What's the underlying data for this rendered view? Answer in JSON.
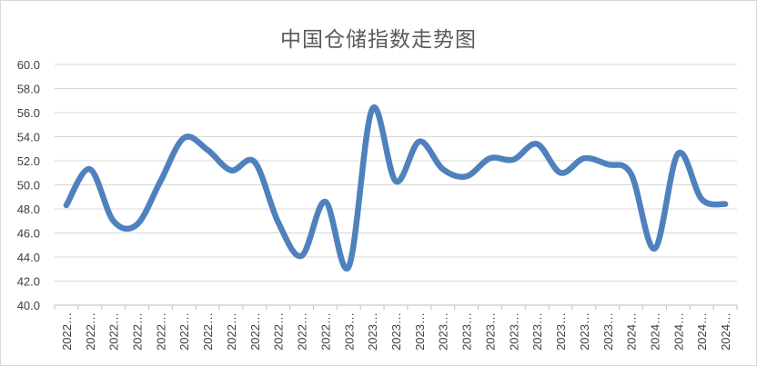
{
  "chart_data": {
    "type": "line",
    "title": "中国仓储指数走势图",
    "xlabel": "",
    "ylabel": "",
    "ylim": [
      40,
      60
    ],
    "ystep": 2,
    "grid": true,
    "legend": "none",
    "line_color": "#4f81bd",
    "categories": [
      "2022…",
      "2022…",
      "2022…",
      "2022…",
      "2022…",
      "2022…",
      "2022…",
      "2022…",
      "2022…",
      "2022…",
      "2022…",
      "2022…",
      "2023…",
      "2023…",
      "2023…",
      "2023…",
      "2023…",
      "2023…",
      "2023…",
      "2023…",
      "2023…",
      "2023…",
      "2023…",
      "2023…",
      "2024…",
      "2024…",
      "2024…",
      "2024…",
      "2024…"
    ],
    "series": [
      {
        "values": [
          48.3,
          51.3,
          47.0,
          46.7,
          50.3,
          53.9,
          52.9,
          51.2,
          51.9,
          46.9,
          44.1,
          48.6,
          43.2,
          56.3,
          50.3,
          53.6,
          51.3,
          50.7,
          52.2,
          52.1,
          53.4,
          51.0,
          52.2,
          51.7,
          50.9,
          44.7,
          52.6,
          48.8,
          48.4
        ]
      }
    ]
  }
}
